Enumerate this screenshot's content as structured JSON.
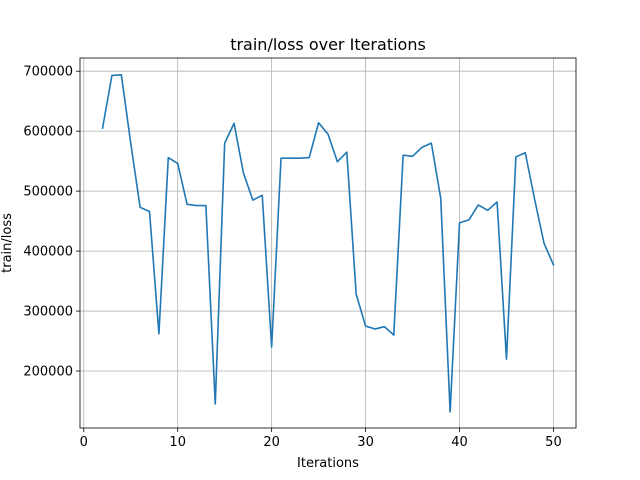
{
  "chart_data": {
    "type": "line",
    "title": "train/loss over Iterations",
    "xlabel": "Iterations",
    "ylabel": "train/loss",
    "xlim": [
      -0.4,
      52.4
    ],
    "ylim": [
      105000,
      722000
    ],
    "xticks": [
      0,
      10,
      20,
      30,
      40,
      50
    ],
    "yticks": [
      200000,
      300000,
      400000,
      500000,
      600000,
      700000
    ],
    "xtick_labels": [
      "0",
      "10",
      "20",
      "30",
      "40",
      "50"
    ],
    "ytick_labels": [
      "200000",
      "300000",
      "400000",
      "500000",
      "600000",
      "700000"
    ],
    "grid": true,
    "color": "#1f77b4",
    "series": [
      {
        "x": [
          2,
          3,
          4,
          5,
          6,
          7,
          8,
          9,
          10,
          11,
          12,
          13,
          14,
          15,
          16,
          17,
          18,
          19,
          20,
          21,
          22,
          23,
          24,
          25,
          26,
          27,
          28,
          29,
          30,
          31,
          32,
          33,
          34,
          35,
          36,
          37,
          38,
          39,
          40,
          41,
          42,
          43,
          44,
          45,
          46,
          47,
          48,
          49,
          50
        ],
        "y": [
          605000,
          693000,
          694000,
          580000,
          473000,
          466000,
          262000,
          556000,
          546000,
          478000,
          476000,
          476000,
          145000,
          580000,
          613000,
          530000,
          485000,
          493000,
          240000,
          555000,
          555000,
          555000,
          556000,
          614000,
          595000,
          549000,
          565000,
          328000,
          275000,
          270000,
          274000,
          260000,
          560000,
          558000,
          573000,
          580000,
          488000,
          132000,
          447000,
          452000,
          477000,
          468000,
          482000,
          220000,
          557000,
          564000,
          486000,
          413000,
          377000
        ]
      }
    ]
  }
}
